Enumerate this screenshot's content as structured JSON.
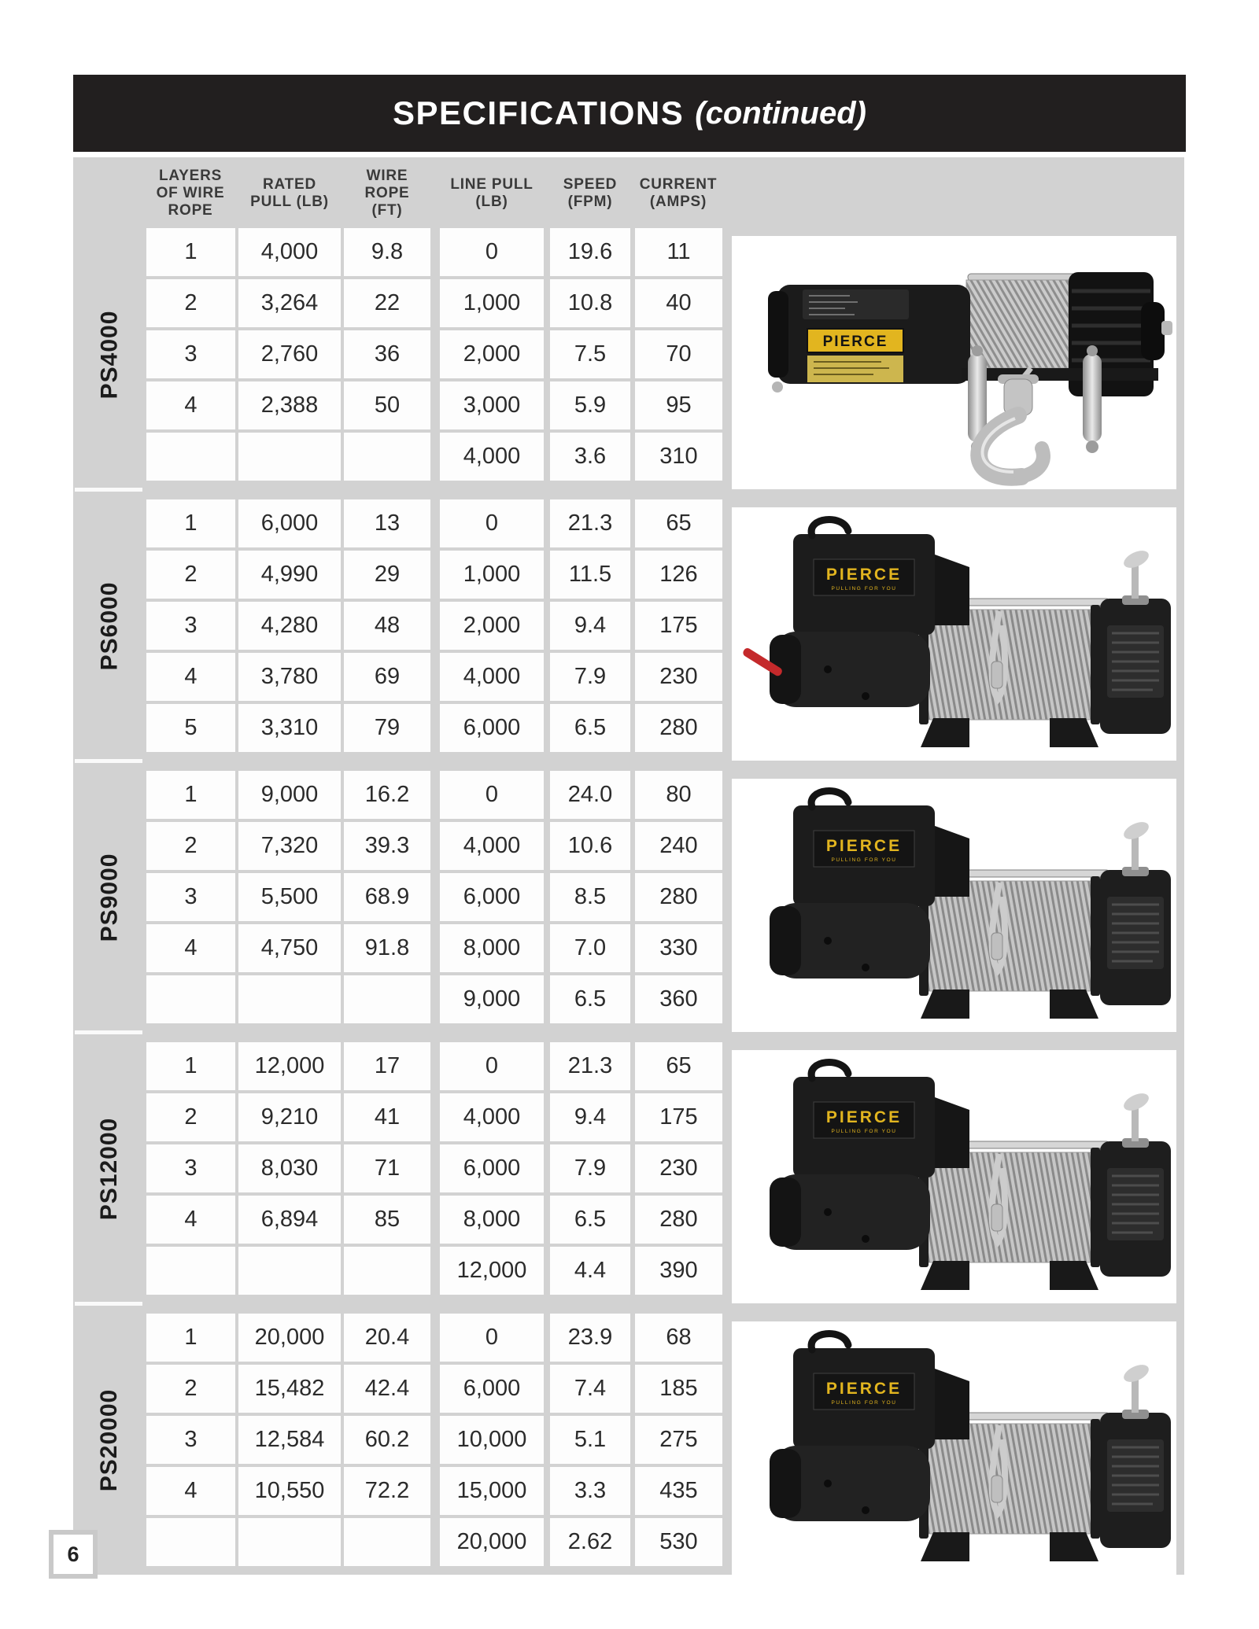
{
  "page": {
    "number": "6"
  },
  "title_bar": {
    "title": "SPECIFICATIONS",
    "suffix": "(continued)"
  },
  "brand": {
    "name": "PIERCE",
    "tagline": "PULLING FOR YOU"
  },
  "colors": {
    "bar_black": "#221f1f",
    "panel_gray": "#d2d2d2",
    "accent_yellow": "#e2b51f"
  },
  "table": {
    "columns": [
      "LAYERS\nOF WIRE\nROPE",
      "RATED\nPULL (LB)",
      "WIRE\nROPE\n(FT)",
      "LINE PULL\n(LB)",
      "SPEED\n(FPM)",
      "CURRENT\n(AMPS)"
    ],
    "sections": [
      {
        "name": "PS4000",
        "rows": [
          [
            "1",
            "4,000",
            "9.8",
            "0",
            "19.6",
            "11"
          ],
          [
            "2",
            "3,264",
            "22",
            "1,000",
            "10.8",
            "40"
          ],
          [
            "3",
            "2,760",
            "36",
            "2,000",
            "7.5",
            "70"
          ],
          [
            "4",
            "2,388",
            "50",
            "3,000",
            "5.9",
            "95"
          ],
          [
            "",
            "",
            "",
            "4,000",
            "3.6",
            "310"
          ]
        ]
      },
      {
        "name": "PS6000",
        "rows": [
          [
            "1",
            "6,000",
            "13",
            "0",
            "21.3",
            "65"
          ],
          [
            "2",
            "4,990",
            "29",
            "1,000",
            "11.5",
            "126"
          ],
          [
            "3",
            "4,280",
            "48",
            "2,000",
            "9.4",
            "175"
          ],
          [
            "4",
            "3,780",
            "69",
            "4,000",
            "7.9",
            "230"
          ],
          [
            "5",
            "3,310",
            "79",
            "6,000",
            "6.5",
            "280"
          ]
        ]
      },
      {
        "name": "PS9000",
        "rows": [
          [
            "1",
            "9,000",
            "16.2",
            "0",
            "24.0",
            "80"
          ],
          [
            "2",
            "7,320",
            "39.3",
            "4,000",
            "10.6",
            "240"
          ],
          [
            "3",
            "5,500",
            "68.9",
            "6,000",
            "8.5",
            "280"
          ],
          [
            "4",
            "4,750",
            "91.8",
            "8,000",
            "7.0",
            "330"
          ],
          [
            "",
            "",
            "",
            "9,000",
            "6.5",
            "360"
          ]
        ]
      },
      {
        "name": "PS12000",
        "rows": [
          [
            "1",
            "12,000",
            "17",
            "0",
            "21.3",
            "65"
          ],
          [
            "2",
            "9,210",
            "41",
            "4,000",
            "9.4",
            "175"
          ],
          [
            "3",
            "8,030",
            "71",
            "6,000",
            "7.9",
            "230"
          ],
          [
            "4",
            "6,894",
            "85",
            "8,000",
            "6.5",
            "280"
          ],
          [
            "",
            "",
            "",
            "12,000",
            "4.4",
            "390"
          ]
        ]
      },
      {
        "name": "PS20000",
        "rows": [
          [
            "1",
            "20,000",
            "20.4",
            "0",
            "23.9",
            "68"
          ],
          [
            "2",
            "15,482",
            "42.4",
            "6,000",
            "7.4",
            "185"
          ],
          [
            "3",
            "12,584",
            "60.2",
            "10,000",
            "5.1",
            "275"
          ],
          [
            "4",
            "10,550",
            "72.2",
            "15,000",
            "3.3",
            "435"
          ],
          [
            "",
            "",
            "",
            "20,000",
            "2.62",
            "530"
          ]
        ]
      }
    ]
  }
}
